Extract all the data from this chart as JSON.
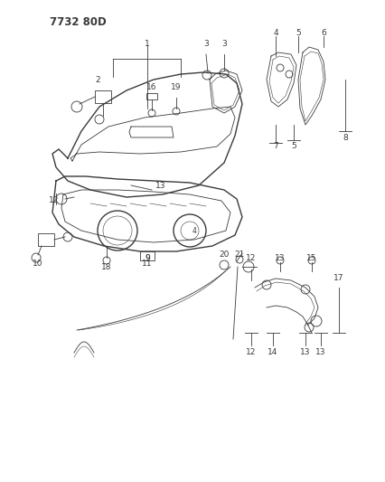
{
  "title": "7732 80D",
  "bg_color": "#ffffff",
  "line_color": "#3a3a3a",
  "figsize": [
    4.27,
    5.33
  ],
  "dpi": 100,
  "title_fs": 8.5,
  "label_fs": 6.5
}
